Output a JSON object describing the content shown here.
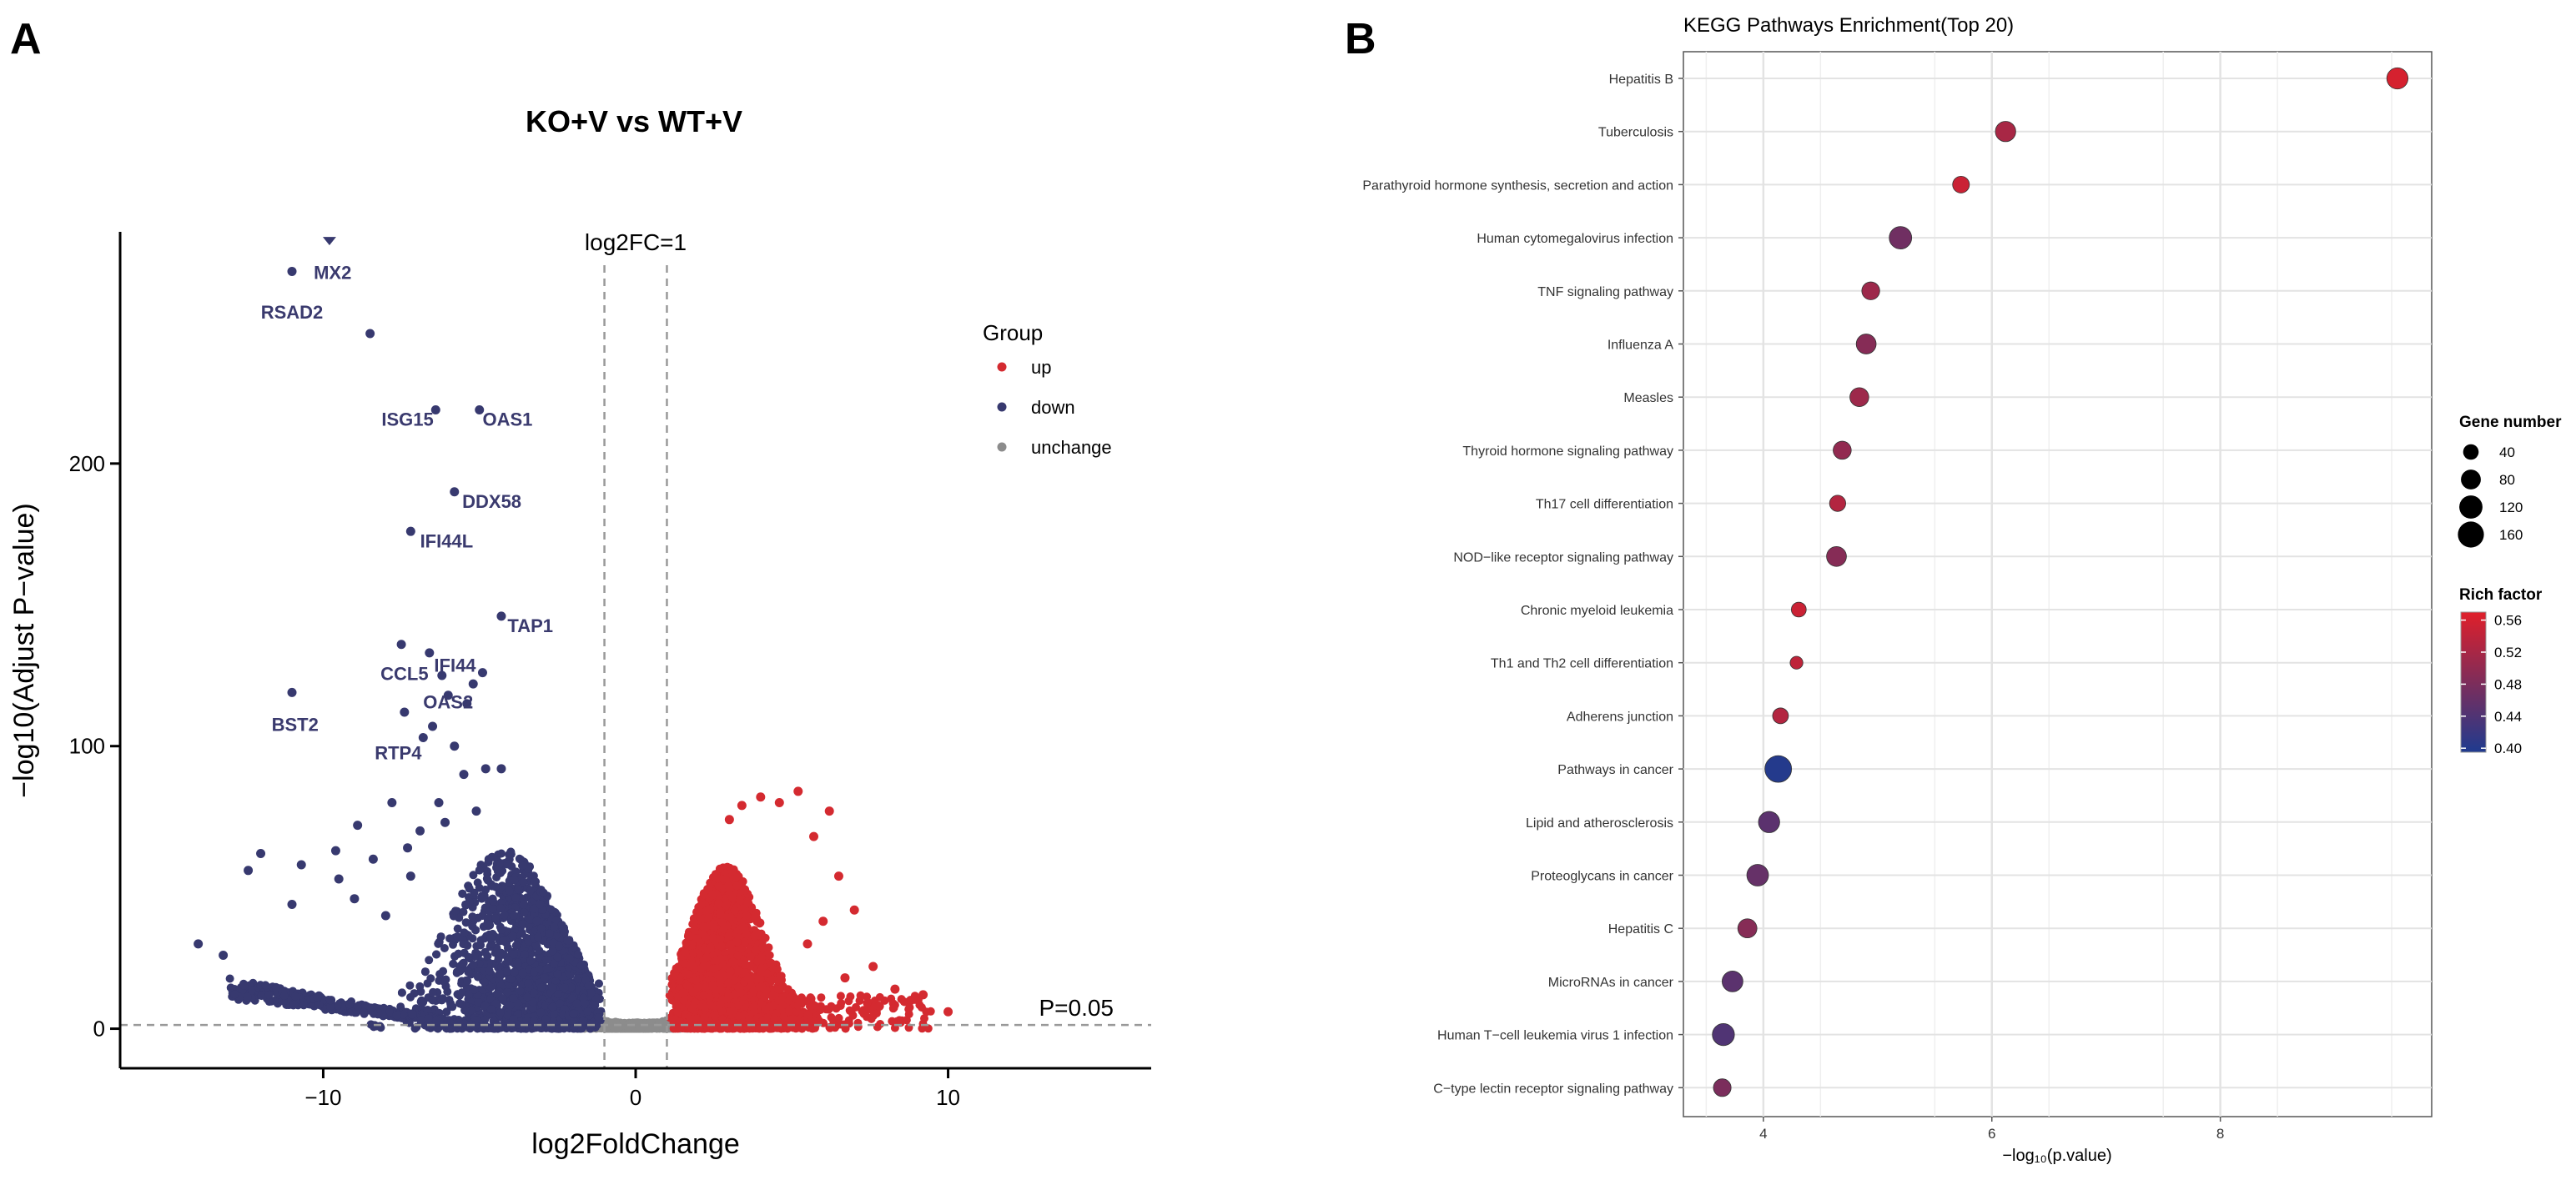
{
  "colors": {
    "up": "#d42a30",
    "down": "#37396f",
    "unchange": "#8c8c8c",
    "grid": "#e3e3e3",
    "panel_bg": "#ffffff",
    "rich_high": "#e01f2a",
    "rich_mid": "#7e2d5a",
    "rich_low": "#1f3b8f"
  },
  "chart_data": [
    {
      "panel_label": "A",
      "type": "scatter",
      "title": "KO+V vs WT+V",
      "xlabel": "log2FoldChange",
      "ylabel": "−log10(Adjust P−value)",
      "xlim": [
        -16.5,
        16.5
      ],
      "ylim": [
        -14,
        282
      ],
      "xticks": [
        -10,
        0,
        10
      ],
      "yticks": [
        0,
        100,
        200
      ],
      "xtick_labels": [
        "−10",
        "0",
        "10"
      ],
      "ytick_labels": [
        "0",
        "100",
        "200"
      ],
      "thresholds": {
        "log2fc": 1,
        "log2fc_label": "log2FC=1",
        "pvalue_line_y": 1.3,
        "pvalue_label": "P=0.05"
      },
      "legend": {
        "title": "Group",
        "position": "right",
        "entries": [
          {
            "key": "up",
            "label": "up"
          },
          {
            "key": "down",
            "label": "down"
          },
          {
            "key": "unchange",
            "label": "unchange"
          }
        ]
      },
      "labeled_genes": [
        {
          "gene": "MX2",
          "x": -9.8,
          "y": 279
        },
        {
          "gene": "RSAD2",
          "x": -11.0,
          "y": 268
        },
        {
          "gene": "ISG15",
          "x": -6.4,
          "y": 219
        },
        {
          "gene": "OAS1",
          "x": -5.0,
          "y": 219
        },
        {
          "gene": "DDX58",
          "x": -5.8,
          "y": 190
        },
        {
          "gene": "IFI44L",
          "x": -7.2,
          "y": 176
        },
        {
          "gene": "TAP1",
          "x": -4.3,
          "y": 146
        },
        {
          "gene": "CCL5",
          "x": -7.5,
          "y": 136
        },
        {
          "gene": "IFI44",
          "x": -6.6,
          "y": 133
        },
        {
          "gene": "OAS2",
          "x": -5.2,
          "y": 122
        },
        {
          "gene": "BST2",
          "x": -11.0,
          "y": 119
        },
        {
          "gene": "RTP4",
          "x": -6.8,
          "y": 103
        }
      ],
      "extra_down_points": [
        {
          "x": -8.5,
          "y": 246
        },
        {
          "x": -6.2,
          "y": 125
        },
        {
          "x": -4.9,
          "y": 126
        },
        {
          "x": -6.0,
          "y": 118
        },
        {
          "x": -5.4,
          "y": 115
        },
        {
          "x": -7.4,
          "y": 112
        },
        {
          "x": -6.5,
          "y": 107
        },
        {
          "x": -5.8,
          "y": 100
        },
        {
          "x": -4.8,
          "y": 92
        },
        {
          "x": -7.8,
          "y": 80
        },
        {
          "x": -8.9,
          "y": 72
        },
        {
          "x": -6.3,
          "y": 80
        },
        {
          "x": -5.5,
          "y": 90
        },
        {
          "x": -4.3,
          "y": 92
        },
        {
          "x": -7.3,
          "y": 64
        },
        {
          "x": -9.6,
          "y": 63
        },
        {
          "x": -8.4,
          "y": 60
        },
        {
          "x": -10.7,
          "y": 58
        },
        {
          "x": -12.0,
          "y": 62
        },
        {
          "x": -12.4,
          "y": 56
        },
        {
          "x": -9.5,
          "y": 53
        },
        {
          "x": -9.0,
          "y": 46
        },
        {
          "x": -11.0,
          "y": 44
        },
        {
          "x": -14.0,
          "y": 30
        },
        {
          "x": -13.2,
          "y": 26
        },
        {
          "x": -8.0,
          "y": 40
        },
        {
          "x": -7.2,
          "y": 54
        },
        {
          "x": -6.9,
          "y": 70
        },
        {
          "x": -6.1,
          "y": 73
        },
        {
          "x": -5.1,
          "y": 77
        }
      ],
      "extra_up_points": [
        {
          "x": 5.2,
          "y": 84
        },
        {
          "x": 4.0,
          "y": 82
        },
        {
          "x": 4.6,
          "y": 80
        },
        {
          "x": 6.2,
          "y": 77
        },
        {
          "x": 3.4,
          "y": 79
        },
        {
          "x": 3.0,
          "y": 74
        },
        {
          "x": 5.7,
          "y": 68
        },
        {
          "x": 6.5,
          "y": 54
        },
        {
          "x": 7.0,
          "y": 42
        },
        {
          "x": 6.0,
          "y": 38
        },
        {
          "x": 7.6,
          "y": 22
        },
        {
          "x": 8.3,
          "y": 14
        },
        {
          "x": 9.2,
          "y": 12
        },
        {
          "x": 8.8,
          "y": 10
        },
        {
          "x": 10.0,
          "y": 6
        },
        {
          "x": 7.8,
          "y": 8
        },
        {
          "x": 6.7,
          "y": 18
        },
        {
          "x": 5.5,
          "y": 30
        }
      ]
    },
    {
      "panel_label": "B",
      "type": "scatter",
      "title": "KEGG Pathways Enrichment(Top 20)",
      "xlabel": "−log₁₀(p.value)",
      "xlim": [
        3.3,
        9.85
      ],
      "xticks": [
        4,
        6,
        8
      ],
      "xtick_labels": [
        "4",
        "6",
        "8"
      ],
      "size_legend": {
        "title": "Gene number",
        "breaks": [
          40,
          80,
          120,
          160
        ],
        "labels": [
          "40",
          "80",
          "120",
          "160"
        ]
      },
      "color_legend": {
        "title": "Rich factor",
        "range": [
          0.395,
          0.57
        ],
        "breaks": [
          0.56,
          0.52,
          0.48,
          0.44,
          0.4
        ],
        "labels": [
          "0.56",
          "0.52",
          "0.48",
          "0.44",
          "0.40"
        ]
      },
      "pathways": [
        {
          "name": "Hepatitis B",
          "x": 9.55,
          "gene_number": 95,
          "rich_factor": 0.56
        },
        {
          "name": "Tuberculosis",
          "x": 6.12,
          "gene_number": 85,
          "rich_factor": 0.52
        },
        {
          "name": "Parathyroid hormone synthesis, secretion and action",
          "x": 5.73,
          "gene_number": 50,
          "rich_factor": 0.55
        },
        {
          "name": "Human cytomegalovirus infection",
          "x": 5.2,
          "gene_number": 110,
          "rich_factor": 0.47
        },
        {
          "name": "TNF signaling pathway",
          "x": 4.94,
          "gene_number": 60,
          "rich_factor": 0.51
        },
        {
          "name": "Influenza A",
          "x": 4.9,
          "gene_number": 80,
          "rich_factor": 0.49
        },
        {
          "name": "Measles",
          "x": 4.84,
          "gene_number": 70,
          "rich_factor": 0.51
        },
        {
          "name": "Thyroid hormone signaling pathway",
          "x": 4.69,
          "gene_number": 62,
          "rich_factor": 0.5
        },
        {
          "name": "Th17 cell differentiation",
          "x": 4.65,
          "gene_number": 45,
          "rich_factor": 0.53
        },
        {
          "name": "NOD−like receptor signaling pathway",
          "x": 4.64,
          "gene_number": 80,
          "rich_factor": 0.49
        },
        {
          "name": "Chronic myeloid leukemia",
          "x": 4.31,
          "gene_number": 35,
          "rich_factor": 0.55
        },
        {
          "name": "Th1 and Th2 cell differentiation",
          "x": 4.29,
          "gene_number": 22,
          "rich_factor": 0.54
        },
        {
          "name": "Adherens junction",
          "x": 4.15,
          "gene_number": 42,
          "rich_factor": 0.53
        },
        {
          "name": "Pathways in cancer",
          "x": 4.13,
          "gene_number": 170,
          "rich_factor": 0.4
        },
        {
          "name": "Lipid and atherosclerosis",
          "x": 4.05,
          "gene_number": 95,
          "rich_factor": 0.45
        },
        {
          "name": "Proteoglycans in cancer",
          "x": 3.95,
          "gene_number": 100,
          "rich_factor": 0.46
        },
        {
          "name": "Hepatitis C",
          "x": 3.86,
          "gene_number": 72,
          "rich_factor": 0.49
        },
        {
          "name": "MicroRNAs in cancer",
          "x": 3.73,
          "gene_number": 90,
          "rich_factor": 0.45
        },
        {
          "name": "Human T−cell leukemia virus 1 infection",
          "x": 3.65,
          "gene_number": 105,
          "rich_factor": 0.44
        },
        {
          "name": "C−type lectin receptor signaling pathway",
          "x": 3.64,
          "gene_number": 58,
          "rich_factor": 0.48
        }
      ]
    }
  ]
}
